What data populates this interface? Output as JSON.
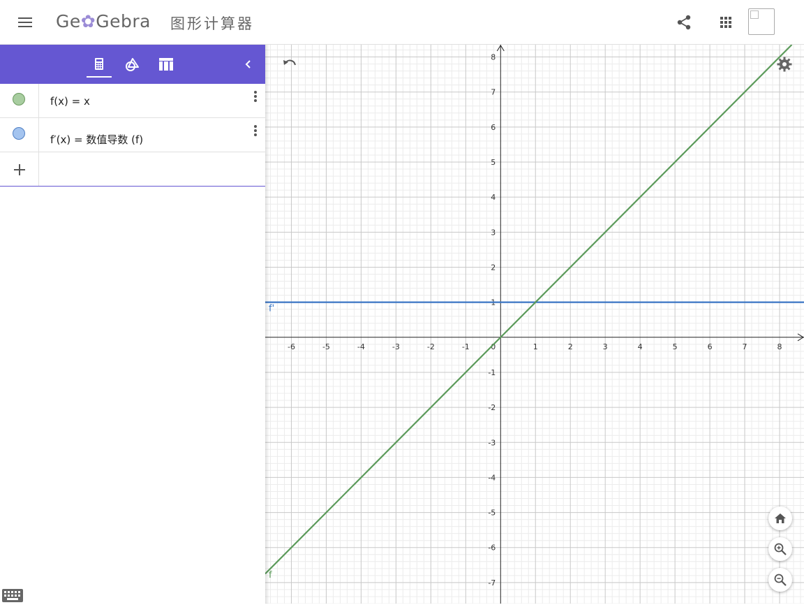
{
  "header": {
    "logo_prefix": "Ge",
    "logo_mid": "✿",
    "logo_suffix": "Gebra",
    "app_title": "图形计算器",
    "icons": [
      "menu-icon",
      "share-icon",
      "apps-grid-icon",
      "profile-image"
    ]
  },
  "algebra_view": {
    "toolbar_icons": [
      "calculator-icon",
      "tools-icon",
      "table-icon",
      "chevron-left-icon"
    ],
    "active_tab": "calculator",
    "rows": [
      {
        "expression": "f(x) = x",
        "color": "#a8cda0",
        "border": "#6b9a5f"
      },
      {
        "expression": "f′(x) = 数值导数 (f)",
        "color": "#a4c4ef",
        "border": "#4f7fc4"
      }
    ],
    "input_placeholder": ""
  },
  "colors": {
    "accent": "#6557d2",
    "f_line": "#5b9a5a",
    "derivative_line": "#3a75c4",
    "grid_major": "#c8c8c8",
    "grid_minor": "#ececec"
  },
  "graph": {
    "x_ticks": [
      "-6",
      "-5",
      "-4",
      "-3",
      "-2",
      "-1",
      "0",
      "1",
      "2",
      "3",
      "4",
      "5",
      "6",
      "7",
      "8"
    ],
    "y_ticks": [
      "8",
      "7",
      "6",
      "5",
      "4",
      "3",
      "2",
      "1",
      "-1",
      "-2",
      "-3",
      "-4",
      "-5",
      "-6",
      "-7"
    ],
    "x_range": [
      -6.75,
      8.7
    ],
    "y_range": [
      -7.6,
      8.35
    ],
    "functions": [
      {
        "label": "f",
        "expression": "x"
      },
      {
        "label": "f'",
        "expression": "1"
      }
    ]
  },
  "controls": [
    "undo-icon",
    "settings-icon",
    "home-icon",
    "zoom-in-icon",
    "zoom-out-icon",
    "keyboard-icon"
  ]
}
